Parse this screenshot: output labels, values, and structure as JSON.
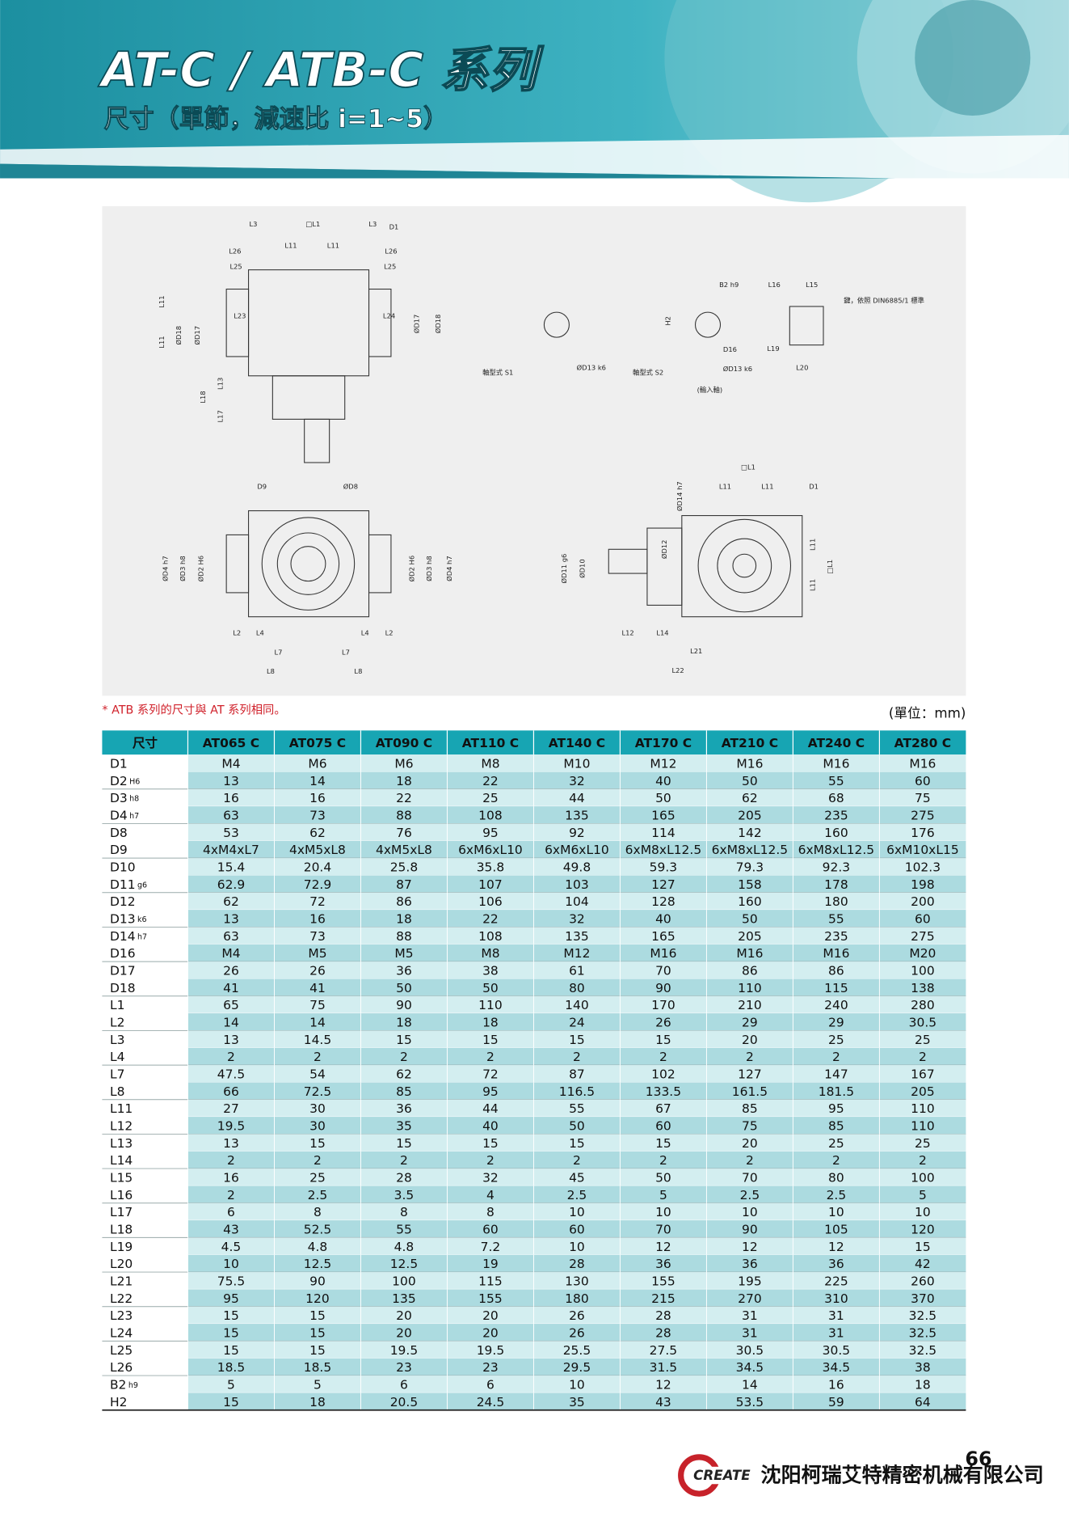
{
  "header": {
    "title": "AT-C / ATB-C 系列",
    "subtitle": "尺寸（單節，減速比 i=1~5）"
  },
  "drawing": {
    "labels": [
      "L3",
      "□L1",
      "L3",
      "D1",
      "L26",
      "L11",
      "L11",
      "L26",
      "L25",
      "L25",
      "L11",
      "L11",
      "ØD18",
      "ØD17",
      "L23",
      "L24",
      "ØD17",
      "ØD18",
      "L13",
      "L18",
      "L17",
      "軸型式 S1",
      "ØD13 k6",
      "B2 h9",
      "H2",
      "D16",
      "ØD13 k6",
      "軸型式 S2",
      "(輸入軸)",
      "L16",
      "L15",
      "鍵，依照 DIN6885/1 標準",
      "L19",
      "L20",
      "D9",
      "ØD8",
      "ØD4 h7",
      "ØD3 h8",
      "ØD2 H6",
      "ØD2 H6",
      "ØD3 h8",
      "ØD4 h7",
      "L2",
      "L4",
      "L4",
      "L2",
      "L7",
      "L7",
      "L8",
      "L8",
      "□L1",
      "ØD14 h7",
      "L11",
      "L11",
      "D1",
      "ØD11 g6",
      "ØD10",
      "ØD12",
      "L11",
      "L11",
      "□L1",
      "L12",
      "L14",
      "L21",
      "L22"
    ]
  },
  "note": "* ATB 系列的尺寸與 AT 系列相同。",
  "unit": "(單位：mm)",
  "table": {
    "header": [
      "尺寸",
      "AT065 C",
      "AT075 C",
      "AT090 C",
      "AT110 C",
      "AT140 C",
      "AT170 C",
      "AT210 C",
      "AT240 C",
      "AT280 C"
    ],
    "rows": [
      {
        "label": "D1",
        "cells": [
          "M4",
          "M6",
          "M6",
          "M8",
          "M10",
          "M12",
          "M16",
          "M16",
          "M16"
        ]
      },
      {
        "label": "D2",
        "tol": "H6",
        "cells": [
          "13",
          "14",
          "18",
          "22",
          "32",
          "40",
          "50",
          "55",
          "60"
        ]
      },
      {
        "label": "D3",
        "tol": "h8",
        "cells": [
          "16",
          "16",
          "22",
          "25",
          "44",
          "50",
          "62",
          "68",
          "75"
        ]
      },
      {
        "label": "D4",
        "tol": "h7",
        "cells": [
          "63",
          "73",
          "88",
          "108",
          "135",
          "165",
          "205",
          "235",
          "275"
        ]
      },
      {
        "label": "D8",
        "cells": [
          "53",
          "62",
          "76",
          "95",
          "92",
          "114",
          "142",
          "160",
          "176"
        ]
      },
      {
        "label": "D9",
        "cells": [
          "4xM4xL7",
          "4xM5xL8",
          "4xM5xL8",
          "6xM6xL10",
          "6xM6xL10",
          "6xM8xL12.5",
          "6xM8xL12.5",
          "6xM8xL12.5",
          "6xM10xL15"
        ]
      },
      {
        "label": "D10",
        "cells": [
          "15.4",
          "20.4",
          "25.8",
          "35.8",
          "49.8",
          "59.3",
          "79.3",
          "92.3",
          "102.3"
        ]
      },
      {
        "label": "D11",
        "tol": "g6",
        "cells": [
          "62.9",
          "72.9",
          "87",
          "107",
          "103",
          "127",
          "158",
          "178",
          "198"
        ]
      },
      {
        "label": "D12",
        "cells": [
          "62",
          "72",
          "86",
          "106",
          "104",
          "128",
          "160",
          "180",
          "200"
        ]
      },
      {
        "label": "D13",
        "tol": "k6",
        "cells": [
          "13",
          "16",
          "18",
          "22",
          "32",
          "40",
          "50",
          "55",
          "60"
        ]
      },
      {
        "label": "D14",
        "tol": "h7",
        "cells": [
          "63",
          "73",
          "88",
          "108",
          "135",
          "165",
          "205",
          "235",
          "275"
        ]
      },
      {
        "label": "D16",
        "cells": [
          "M4",
          "M5",
          "M5",
          "M8",
          "M12",
          "M16",
          "M16",
          "M16",
          "M20"
        ]
      },
      {
        "label": "D17",
        "cells": [
          "26",
          "26",
          "36",
          "38",
          "61",
          "70",
          "86",
          "86",
          "100"
        ]
      },
      {
        "label": "D18",
        "cells": [
          "41",
          "41",
          "50",
          "50",
          "80",
          "90",
          "110",
          "115",
          "138"
        ]
      },
      {
        "label": "L1",
        "cells": [
          "65",
          "75",
          "90",
          "110",
          "140",
          "170",
          "210",
          "240",
          "280"
        ]
      },
      {
        "label": "L2",
        "cells": [
          "14",
          "14",
          "18",
          "18",
          "24",
          "26",
          "29",
          "29",
          "30.5"
        ]
      },
      {
        "label": "L3",
        "cells": [
          "13",
          "14.5",
          "15",
          "15",
          "15",
          "15",
          "20",
          "25",
          "25"
        ]
      },
      {
        "label": "L4",
        "cells": [
          "2",
          "2",
          "2",
          "2",
          "2",
          "2",
          "2",
          "2",
          "2"
        ]
      },
      {
        "label": "L7",
        "cells": [
          "47.5",
          "54",
          "62",
          "72",
          "87",
          "102",
          "127",
          "147",
          "167"
        ]
      },
      {
        "label": "L8",
        "cells": [
          "66",
          "72.5",
          "85",
          "95",
          "116.5",
          "133.5",
          "161.5",
          "181.5",
          "205"
        ]
      },
      {
        "label": "L11",
        "cells": [
          "27",
          "30",
          "36",
          "44",
          "55",
          "67",
          "85",
          "95",
          "110"
        ]
      },
      {
        "label": "L12",
        "cells": [
          "19.5",
          "30",
          "35",
          "40",
          "50",
          "60",
          "75",
          "85",
          "110"
        ]
      },
      {
        "label": "L13",
        "cells": [
          "13",
          "15",
          "15",
          "15",
          "15",
          "15",
          "20",
          "25",
          "25"
        ]
      },
      {
        "label": "L14",
        "cells": [
          "2",
          "2",
          "2",
          "2",
          "2",
          "2",
          "2",
          "2",
          "2"
        ]
      },
      {
        "label": "L15",
        "cells": [
          "16",
          "25",
          "28",
          "32",
          "45",
          "50",
          "70",
          "80",
          "100"
        ]
      },
      {
        "label": "L16",
        "cells": [
          "2",
          "2.5",
          "3.5",
          "4",
          "2.5",
          "5",
          "2.5",
          "2.5",
          "5"
        ]
      },
      {
        "label": "L17",
        "cells": [
          "6",
          "8",
          "8",
          "8",
          "10",
          "10",
          "10",
          "10",
          "10"
        ]
      },
      {
        "label": "L18",
        "cells": [
          "43",
          "52.5",
          "55",
          "60",
          "60",
          "70",
          "90",
          "105",
          "120"
        ]
      },
      {
        "label": "L19",
        "cells": [
          "4.5",
          "4.8",
          "4.8",
          "7.2",
          "10",
          "12",
          "12",
          "12",
          "15"
        ]
      },
      {
        "label": "L20",
        "cells": [
          "10",
          "12.5",
          "12.5",
          "19",
          "28",
          "36",
          "36",
          "36",
          "42"
        ]
      },
      {
        "label": "L21",
        "cells": [
          "75.5",
          "90",
          "100",
          "115",
          "130",
          "155",
          "195",
          "225",
          "260"
        ]
      },
      {
        "label": "L22",
        "cells": [
          "95",
          "120",
          "135",
          "155",
          "180",
          "215",
          "270",
          "310",
          "370"
        ]
      },
      {
        "label": "L23",
        "cells": [
          "15",
          "15",
          "20",
          "20",
          "26",
          "28",
          "31",
          "31",
          "32.5"
        ]
      },
      {
        "label": "L24",
        "cells": [
          "15",
          "15",
          "20",
          "20",
          "26",
          "28",
          "31",
          "31",
          "32.5"
        ]
      },
      {
        "label": "L25",
        "cells": [
          "15",
          "15",
          "19.5",
          "19.5",
          "25.5",
          "27.5",
          "30.5",
          "30.5",
          "32.5"
        ]
      },
      {
        "label": "L26",
        "cells": [
          "18.5",
          "18.5",
          "23",
          "23",
          "29.5",
          "31.5",
          "34.5",
          "34.5",
          "38"
        ]
      },
      {
        "label": "B2",
        "tol": "h9",
        "cells": [
          "5",
          "5",
          "6",
          "6",
          "10",
          "12",
          "14",
          "16",
          "18"
        ]
      },
      {
        "label": "H2",
        "cells": [
          "15",
          "18",
          "20.5",
          "24.5",
          "35",
          "43",
          "53.5",
          "59",
          "64"
        ]
      }
    ]
  },
  "footer": {
    "page": "66",
    "logo": "CREATE",
    "company": "沈阳柯瑞艾特精密机械有限公司"
  }
}
